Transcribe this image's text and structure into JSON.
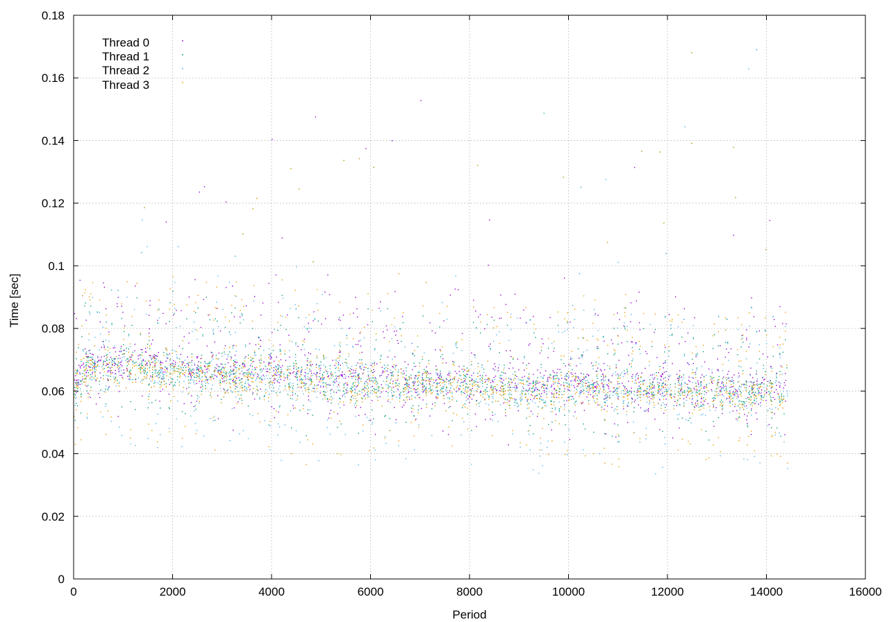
{
  "chart_data": {
    "type": "scatter",
    "title": "",
    "xlabel": "Period",
    "ylabel": "Time [sec]",
    "xlim": [
      0,
      16000
    ],
    "ylim": [
      0,
      0.18
    ],
    "x_ticks": [
      "0",
      "2000",
      "4000",
      "6000",
      "8000",
      "10000",
      "12000",
      "14000",
      "16000"
    ],
    "y_ticks": [
      "0",
      "0.02",
      "0.04",
      "0.06",
      "0.08",
      "0.1",
      "0.12",
      "0.14",
      "0.16",
      "0.18"
    ],
    "grid": true,
    "legend_position": "top-left",
    "x_range_of_data": [
      0,
      14420
    ],
    "series": [
      {
        "name": "Thread 0",
        "color": "#9400d3",
        "typical": 0.064,
        "spread_low": 0.05,
        "spread_high": 0.09
      },
      {
        "name": "Thread 1",
        "color": "#009e73",
        "typical": 0.063,
        "spread_low": 0.05,
        "spread_high": 0.085
      },
      {
        "name": "Thread 2",
        "color": "#56b4e9",
        "typical": 0.062,
        "spread_low": 0.038,
        "spread_high": 0.085
      },
      {
        "name": "Thread 3",
        "color": "#e69f00",
        "typical": 0.062,
        "spread_low": 0.04,
        "spread_high": 0.09
      }
    ],
    "trend": {
      "x": [
        0,
        200,
        400,
        1000,
        1800,
        2500,
        3500,
        4500,
        5500,
        6500,
        7500,
        8500,
        9500,
        10500,
        11500,
        12500,
        13500,
        14420
      ],
      "y": [
        0.06,
        0.066,
        0.068,
        0.068,
        0.067,
        0.066,
        0.065,
        0.064,
        0.063,
        0.062,
        0.062,
        0.061,
        0.061,
        0.061,
        0.061,
        0.06,
        0.06,
        0.06
      ]
    }
  }
}
